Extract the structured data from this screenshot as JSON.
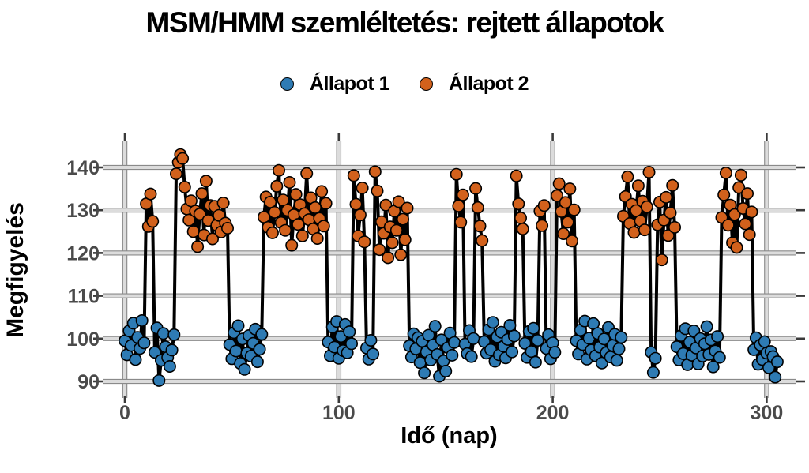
{
  "title": "MSM/HMM szemléltetés: rejtett állapotok",
  "legend": {
    "items": [
      {
        "label": "Állapot 1",
        "color": "#2e7bb4"
      },
      {
        "label": "Állapot 2",
        "color": "#d2611c"
      }
    ]
  },
  "axes": {
    "x": {
      "label": "Idő (nap)",
      "ticks": [
        "0",
        "100",
        "200",
        "300"
      ]
    },
    "y": {
      "label": "Megfigyelés",
      "ticks": [
        "90",
        "100",
        "110",
        "120",
        "130",
        "140"
      ]
    }
  },
  "colors": {
    "state1": "#2e7bb4",
    "state2": "#d2611c",
    "line": "#000000",
    "grid_fill": "#dcdcdc",
    "grid_edge": "#8a8a8a",
    "tick_mark": "#3a3a3a",
    "tick_label": "#4a4a4a",
    "marker_edge": "#000000"
  },
  "chart_data": {
    "type": "scatter",
    "title": "MSM/HMM szemléltetés: rejtett állapotok",
    "xlabel": "Idő (nap)",
    "ylabel": "Megfigyelés",
    "xlim": [
      -10,
      313
    ],
    "ylim": [
      87,
      146
    ],
    "xticks": [
      0,
      100,
      200,
      300
    ],
    "yticks": [
      90,
      100,
      110,
      120,
      130,
      140
    ],
    "grid": true,
    "legend_position": "top-center",
    "connector": {
      "color": "#000000",
      "width": 4
    },
    "series": [
      {
        "name": "Állapot 1",
        "state": 1,
        "color": "#2e7bb4",
        "mean": 99
      },
      {
        "name": "Állapot 2",
        "state": 2,
        "color": "#d2611c",
        "mean": 130
      }
    ],
    "points": [
      [
        0,
        99.5,
        1
      ],
      [
        1,
        96.2,
        1
      ],
      [
        2,
        101.8,
        1
      ],
      [
        3,
        98.4,
        1
      ],
      [
        4,
        103.6,
        1
      ],
      [
        5,
        95.1,
        1
      ],
      [
        6,
        100.3,
        1
      ],
      [
        7,
        97.7,
        1
      ],
      [
        8,
        104.2,
        1
      ],
      [
        9,
        99.0,
        1
      ],
      [
        10,
        131.5,
        2
      ],
      [
        11,
        126.2,
        2
      ],
      [
        12,
        133.8,
        2
      ],
      [
        13,
        127.4,
        2
      ],
      [
        14,
        96.8,
        1
      ],
      [
        15,
        102.5,
        1
      ],
      [
        16,
        90.2,
        1
      ],
      [
        17,
        94.9,
        1
      ],
      [
        18,
        101.2,
        1
      ],
      [
        19,
        98.1,
        1
      ],
      [
        20,
        95.6,
        1
      ],
      [
        21,
        93.5,
        1
      ],
      [
        22,
        97.3,
        1
      ],
      [
        23,
        100.9,
        1
      ],
      [
        24,
        138.5,
        2
      ],
      [
        25,
        141.2,
        2
      ],
      [
        26,
        143.0,
        2
      ],
      [
        27,
        142.1,
        2
      ],
      [
        28,
        135.4,
        2
      ],
      [
        29,
        130.3,
        2
      ],
      [
        30,
        127.7,
        2
      ],
      [
        31,
        132.2,
        2
      ],
      [
        32,
        125.0,
        2
      ],
      [
        33,
        129.8,
        2
      ],
      [
        34,
        121.5,
        2
      ],
      [
        35,
        129.1,
        2
      ],
      [
        36,
        133.9,
        2
      ],
      [
        37,
        124.2,
        2
      ],
      [
        38,
        136.8,
        2
      ],
      [
        39,
        127.6,
        2
      ],
      [
        40,
        131.1,
        2
      ],
      [
        41,
        123.3,
        2
      ],
      [
        42,
        130.9,
        2
      ],
      [
        43,
        126.5,
        2
      ],
      [
        44,
        128.8,
        2
      ],
      [
        45,
        124.9,
        2
      ],
      [
        46,
        131.7,
        2
      ],
      [
        47,
        127.0,
        2
      ],
      [
        48,
        125.8,
        2
      ],
      [
        49,
        98.6,
        1
      ],
      [
        50,
        95.3,
        1
      ],
      [
        51,
        101.4,
        1
      ],
      [
        52,
        97.1,
        1
      ],
      [
        53,
        103.0,
        1
      ],
      [
        54,
        94.2,
        1
      ],
      [
        55,
        99.9,
        1
      ],
      [
        56,
        92.8,
        1
      ],
      [
        57,
        96.6,
        1
      ],
      [
        58,
        100.7,
        1
      ],
      [
        59,
        95.9,
        1
      ],
      [
        60,
        98.9,
        1
      ],
      [
        61,
        102.2,
        1
      ],
      [
        62,
        94.6,
        1
      ],
      [
        63,
        97.5,
        1
      ],
      [
        64,
        101.0,
        1
      ],
      [
        65,
        128.4,
        2
      ],
      [
        66,
        133.1,
        2
      ],
      [
        67,
        126.0,
        2
      ],
      [
        68,
        131.9,
        2
      ],
      [
        69,
        124.7,
        2
      ],
      [
        70,
        129.5,
        2
      ],
      [
        71,
        135.6,
        2
      ],
      [
        72,
        139.3,
        2
      ],
      [
        73,
        127.1,
        2
      ],
      [
        74,
        132.4,
        2
      ],
      [
        75,
        125.3,
        2
      ],
      [
        76,
        130.0,
        2
      ],
      [
        77,
        136.5,
        2
      ],
      [
        78,
        121.8,
        2
      ],
      [
        79,
        128.9,
        2
      ],
      [
        80,
        133.7,
        2
      ],
      [
        81,
        126.7,
        2
      ],
      [
        82,
        131.3,
        2
      ],
      [
        83,
        124.0,
        2
      ],
      [
        84,
        129.2,
        2
      ],
      [
        85,
        138.6,
        2
      ],
      [
        86,
        127.8,
        2
      ],
      [
        87,
        132.9,
        2
      ],
      [
        88,
        125.6,
        2
      ],
      [
        89,
        130.6,
        2
      ],
      [
        90,
        123.4,
        2
      ],
      [
        91,
        128.1,
        2
      ],
      [
        92,
        134.4,
        2
      ],
      [
        93,
        126.3,
        2
      ],
      [
        94,
        131.6,
        2
      ],
      [
        95,
        99.2,
        1
      ],
      [
        96,
        96.0,
        1
      ],
      [
        97,
        102.7,
        1
      ],
      [
        98,
        98.0,
        1
      ],
      [
        99,
        104.0,
        1
      ],
      [
        100,
        95.4,
        1
      ],
      [
        101,
        100.5,
        1
      ],
      [
        102,
        97.2,
        1
      ],
      [
        103,
        103.3,
        1
      ],
      [
        104,
        96.7,
        1
      ],
      [
        105,
        101.6,
        1
      ],
      [
        106,
        98.8,
        1
      ],
      [
        107,
        138.1,
        2
      ],
      [
        108,
        131.4,
        2
      ],
      [
        109,
        124.0,
        2
      ],
      [
        110,
        128.9,
        2
      ],
      [
        111,
        135.2,
        2
      ],
      [
        112,
        122.6,
        2
      ],
      [
        113,
        97.8,
        1
      ],
      [
        114,
        95.2,
        1
      ],
      [
        115,
        99.6,
        1
      ],
      [
        116,
        96.4,
        1
      ],
      [
        117,
        139.0,
        2
      ],
      [
        118,
        134.5,
        2
      ],
      [
        119,
        120.8,
        2
      ],
      [
        120,
        127.3,
        2
      ],
      [
        121,
        124.6,
        2
      ],
      [
        122,
        131.2,
        2
      ],
      [
        123,
        118.9,
        2
      ],
      [
        124,
        126.1,
        2
      ],
      [
        125,
        122.4,
        2
      ],
      [
        126,
        129.8,
        2
      ],
      [
        127,
        125.3,
        2
      ],
      [
        128,
        132.0,
        2
      ],
      [
        129,
        119.6,
        2
      ],
      [
        130,
        127.9,
        2
      ],
      [
        131,
        123.1,
        2
      ],
      [
        132,
        130.5,
        2
      ],
      [
        133,
        98.3,
        1
      ],
      [
        134,
        95.7,
        1
      ],
      [
        135,
        101.1,
        1
      ],
      [
        136,
        97.6,
        1
      ],
      [
        137,
        100.2,
        1
      ],
      [
        138,
        94.4,
        1
      ],
      [
        139,
        99.4,
        1
      ],
      [
        140,
        92.0,
        1
      ],
      [
        141,
        96.9,
        1
      ],
      [
        142,
        100.8,
        1
      ],
      [
        143,
        95.0,
        1
      ],
      [
        144,
        98.5,
        1
      ],
      [
        145,
        102.9,
        1
      ],
      [
        146,
        96.3,
        1
      ],
      [
        147,
        91.2,
        1
      ],
      [
        148,
        99.7,
        1
      ],
      [
        149,
        94.8,
        1
      ],
      [
        150,
        92.4,
        1
      ],
      [
        151,
        97.9,
        1
      ],
      [
        152,
        101.3,
        1
      ],
      [
        153,
        96.1,
        1
      ],
      [
        154,
        99.1,
        1
      ],
      [
        155,
        138.4,
        2
      ],
      [
        156,
        131.0,
        2
      ],
      [
        157,
        127.2,
        2
      ],
      [
        158,
        133.6,
        2
      ],
      [
        159,
        98.7,
        1
      ],
      [
        160,
        96.5,
        1
      ],
      [
        161,
        101.9,
        1
      ],
      [
        162,
        95.8,
        1
      ],
      [
        163,
        100.0,
        1
      ],
      [
        164,
        135.1,
        2
      ],
      [
        165,
        130.6,
        2
      ],
      [
        166,
        126.3,
        2
      ],
      [
        167,
        122.9,
        2
      ],
      [
        168,
        99.3,
        1
      ],
      [
        169,
        96.6,
        1
      ],
      [
        170,
        102.1,
        1
      ],
      [
        171,
        97.4,
        1
      ],
      [
        172,
        103.8,
        1
      ],
      [
        173,
        94.7,
        1
      ],
      [
        174,
        100.4,
        1
      ],
      [
        175,
        96.2,
        1
      ],
      [
        176,
        101.5,
        1
      ],
      [
        177,
        98.2,
        1
      ],
      [
        178,
        95.5,
        1
      ],
      [
        179,
        99.8,
        1
      ],
      [
        180,
        103.1,
        1
      ],
      [
        181,
        96.9,
        1
      ],
      [
        182,
        100.6,
        1
      ],
      [
        183,
        138.0,
        2
      ],
      [
        184,
        131.5,
        2
      ],
      [
        185,
        128.2,
        2
      ],
      [
        186,
        125.6,
        2
      ],
      [
        187,
        98.9,
        1
      ],
      [
        188,
        95.6,
        1
      ],
      [
        189,
        101.7,
        1
      ],
      [
        190,
        97.0,
        1
      ],
      [
        191,
        102.4,
        1
      ],
      [
        192,
        94.5,
        1
      ],
      [
        193,
        99.6,
        1
      ],
      [
        194,
        129.8,
        2
      ],
      [
        195,
        126.4,
        2
      ],
      [
        196,
        131.1,
        2
      ],
      [
        197,
        97.7,
        1
      ],
      [
        198,
        100.9,
        1
      ],
      [
        199,
        95.3,
        1
      ],
      [
        200,
        99.0,
        1
      ],
      [
        201,
        96.8,
        1
      ],
      [
        202,
        133.4,
        2
      ],
      [
        203,
        136.2,
        2
      ],
      [
        204,
        129.7,
        2
      ],
      [
        205,
        124.5,
        2
      ],
      [
        206,
        131.8,
        2
      ],
      [
        207,
        127.2,
        2
      ],
      [
        208,
        135.0,
        2
      ],
      [
        209,
        122.8,
        2
      ],
      [
        210,
        130.1,
        2
      ],
      [
        211,
        99.5,
        1
      ],
      [
        212,
        96.4,
        1
      ],
      [
        213,
        102.0,
        1
      ],
      [
        214,
        98.6,
        1
      ],
      [
        215,
        104.1,
        1
      ],
      [
        216,
        95.2,
        1
      ],
      [
        217,
        100.1,
        1
      ],
      [
        218,
        97.3,
        1
      ],
      [
        219,
        103.5,
        1
      ],
      [
        220,
        96.0,
        1
      ],
      [
        221,
        101.2,
        1
      ],
      [
        222,
        98.0,
        1
      ],
      [
        223,
        94.3,
        1
      ],
      [
        224,
        99.9,
        1
      ],
      [
        225,
        96.7,
        1
      ],
      [
        226,
        102.6,
        1
      ],
      [
        227,
        95.7,
        1
      ],
      [
        228,
        98.4,
        1
      ],
      [
        229,
        101.0,
        1
      ],
      [
        230,
        94.9,
        1
      ],
      [
        231,
        97.6,
        1
      ],
      [
        232,
        100.3,
        1
      ],
      [
        233,
        128.6,
        2
      ],
      [
        234,
        133.2,
        2
      ],
      [
        235,
        137.8,
        2
      ],
      [
        236,
        126.9,
        2
      ],
      [
        237,
        131.4,
        2
      ],
      [
        238,
        124.8,
        2
      ],
      [
        239,
        129.9,
        2
      ],
      [
        240,
        135.7,
        2
      ],
      [
        241,
        127.5,
        2
      ],
      [
        242,
        132.1,
        2
      ],
      [
        243,
        125.4,
        2
      ],
      [
        244,
        130.8,
        2
      ],
      [
        245,
        138.9,
        2
      ],
      [
        246,
        96.8,
        1
      ],
      [
        247,
        92.1,
        1
      ],
      [
        248,
        95.4,
        1
      ],
      [
        249,
        126.6,
        2
      ],
      [
        250,
        131.9,
        2
      ],
      [
        251,
        118.4,
        2
      ],
      [
        252,
        127.7,
        2
      ],
      [
        253,
        133.0,
        2
      ],
      [
        254,
        124.1,
        2
      ],
      [
        255,
        129.4,
        2
      ],
      [
        256,
        135.8,
        2
      ],
      [
        257,
        126.0,
        2
      ],
      [
        258,
        98.1,
        1
      ],
      [
        259,
        95.0,
        1
      ],
      [
        260,
        100.7,
        1
      ],
      [
        261,
        96.5,
        1
      ],
      [
        262,
        102.3,
        1
      ],
      [
        263,
        93.9,
        1
      ],
      [
        264,
        99.2,
        1
      ],
      [
        265,
        96.1,
        1
      ],
      [
        266,
        101.8,
        1
      ],
      [
        267,
        97.8,
        1
      ],
      [
        268,
        94.1,
        1
      ],
      [
        269,
        100.0,
        1
      ],
      [
        270,
        95.9,
        1
      ],
      [
        271,
        98.8,
        1
      ],
      [
        272,
        102.8,
        1
      ],
      [
        273,
        96.3,
        1
      ],
      [
        274,
        99.7,
        1
      ],
      [
        275,
        93.4,
        1
      ],
      [
        276,
        97.1,
        1
      ],
      [
        277,
        100.5,
        1
      ],
      [
        278,
        95.6,
        1
      ],
      [
        279,
        128.3,
        2
      ],
      [
        280,
        133.6,
        2
      ],
      [
        281,
        138.7,
        2
      ],
      [
        282,
        126.5,
        2
      ],
      [
        283,
        131.2,
        2
      ],
      [
        284,
        122.4,
        2
      ],
      [
        285,
        129.0,
        2
      ],
      [
        286,
        121.3,
        2
      ],
      [
        287,
        135.3,
        2
      ],
      [
        288,
        138.2,
        2
      ],
      [
        289,
        130.4,
        2
      ],
      [
        290,
        126.8,
        2
      ],
      [
        291,
        133.9,
        2
      ],
      [
        292,
        124.3,
        2
      ],
      [
        293,
        129.6,
        2
      ],
      [
        294,
        97.4,
        1
      ],
      [
        295,
        100.2,
        1
      ],
      [
        296,
        94.0,
        1
      ],
      [
        297,
        98.5,
        1
      ],
      [
        298,
        95.1,
        1
      ],
      [
        299,
        99.3,
        1
      ],
      [
        300,
        96.6,
        1
      ],
      [
        301,
        93.2,
        1
      ],
      [
        302,
        97.0,
        1
      ],
      [
        303,
        95.8,
        1
      ],
      [
        304,
        91.0,
        1
      ],
      [
        305,
        94.6,
        1
      ]
    ]
  }
}
